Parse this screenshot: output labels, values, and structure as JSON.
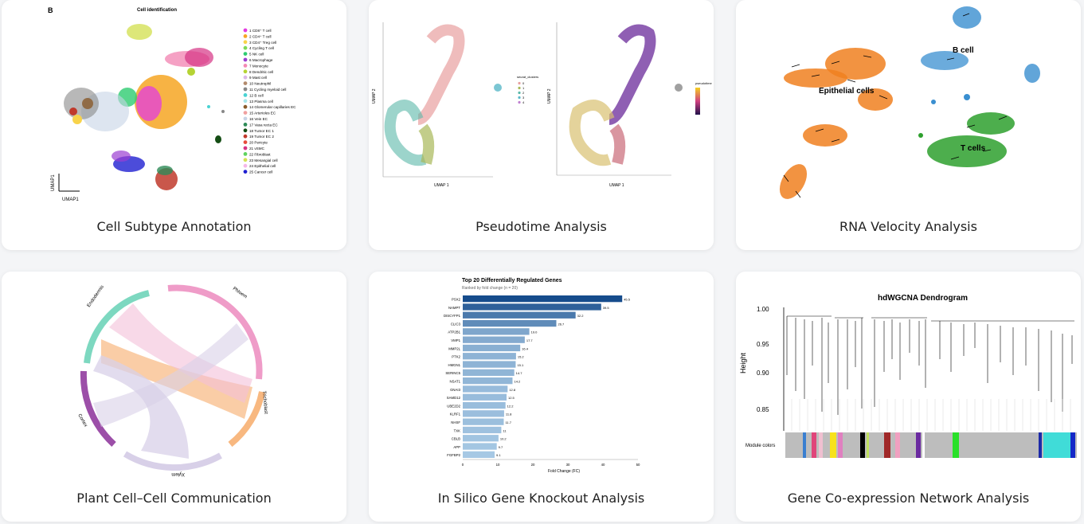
{
  "cards": [
    {
      "title": "Cell Subtype Annotation",
      "panel_letter": "B",
      "plot_title": "Cell identification",
      "axis_y": "UMAP1",
      "axis_x": "UMAP1",
      "legend": [
        {
          "label": "1 CD8⁺ T cell",
          "color": "#e33be0"
        },
        {
          "label": "2 CD4⁺ T cell",
          "color": "#f6a623"
        },
        {
          "label": "3 CD4⁺ Treg cell",
          "color": "#f8d34a"
        },
        {
          "label": "4 Cycling T cell",
          "color": "#7ed957"
        },
        {
          "label": "5 NK cell",
          "color": "#2ecc71"
        },
        {
          "label": "6 Macrophage",
          "color": "#9b3fd1"
        },
        {
          "label": "7 Monocyte",
          "color": "#f38ab5"
        },
        {
          "label": "8 Dendritic cell",
          "color": "#b5d334"
        },
        {
          "label": "9 Mast cell",
          "color": "#d9b8e8"
        },
        {
          "label": "10 Neutrophil",
          "color": "#b38b6d"
        },
        {
          "label": "11 Cycling myeloid cell",
          "color": "#888888"
        },
        {
          "label": "12 B cell",
          "color": "#49d3d3"
        },
        {
          "label": "13 Plasma cell",
          "color": "#a8e6ea"
        },
        {
          "label": "14 Glomerular capillaries EC",
          "color": "#8a5a2b"
        },
        {
          "label": "15 Arterioles EC",
          "color": "#f0a0a0"
        },
        {
          "label": "16 Vein EC",
          "color": "#c7d3e6"
        },
        {
          "label": "17 Vasa recta EC",
          "color": "#2e8b57"
        },
        {
          "label": "18 Tumor EC 1",
          "color": "#144d14"
        },
        {
          "label": "19 Tumor EC 2",
          "color": "#c0392b"
        },
        {
          "label": "20 Pericyte",
          "color": "#e74c3c"
        },
        {
          "label": "21 vSMC",
          "color": "#d63384"
        },
        {
          "label": "22 Fibroblast",
          "color": "#5fd35f"
        },
        {
          "label": "23 Mesangial cell",
          "color": "#d4e157"
        },
        {
          "label": "24 Epithelial cell",
          "color": "#f5b7e8"
        },
        {
          "label": "25 Cancer cell",
          "color": "#1f1fd1"
        }
      ]
    },
    {
      "title": "Pseudotime Analysis",
      "left_ylabel": "UMAP 2",
      "left_xlabel": "UMAP 1",
      "right_ylabel": "UMAP 2",
      "right_xlabel": "UMAP 1",
      "legend_left_title": "seurat_clusters",
      "legend_left_items": [
        "0",
        "1",
        "2",
        "3",
        "4"
      ],
      "legend_right_title": "pseudotime"
    },
    {
      "title": "RNA Velocity Analysis",
      "label_b": "B cell",
      "label_epi": "Epithelial cells",
      "label_t": "T cells"
    },
    {
      "title": "Plant Cell–Cell Communication",
      "segments": [
        "Endodermis",
        "Phloem",
        "Trichoblast",
        "Xylem",
        "Cortex"
      ]
    },
    {
      "title": "In Silico Gene Knockout Analysis",
      "chart_data": {
        "type": "bar",
        "title": "Top 20 Differentially Regulated Genes",
        "subtitle": "Ranked by fold change (n = 20)",
        "xlabel": "Fold Change (FC)",
        "ylabel": "",
        "xlim": [
          0,
          50
        ],
        "xticks": [
          "0",
          "10",
          "20",
          "30",
          "40",
          "50"
        ],
        "categories": [
          "PSX2",
          "NAMPT",
          "DISCYFP1",
          "CLIC3",
          "ATP2B1",
          "VMP1",
          "MMP2L",
          "PTK2",
          "HMGN1",
          "SERINC5",
          "NSAT1",
          "GNAI3",
          "SAMD12",
          "UBE2D2",
          "KLRF1",
          "NHSF",
          "TXK",
          "CBLB",
          "APP",
          "FGFBP2"
        ],
        "values": [
          45.5,
          39.5,
          32.2,
          26.7,
          19.0,
          17.7,
          16.4,
          15.2,
          15.1,
          14.7,
          14.2,
          12.8,
          12.5,
          12.2,
          11.8,
          11.7,
          11.0,
          10.2,
          9.7,
          9.1
        ],
        "value_labels": [
          "45.5",
          "39.5",
          "32.2",
          "26.7",
          "19.0",
          "17.7",
          "16.4",
          "15.2",
          "15.1",
          "14.7",
          "14.2",
          "12.8",
          "12.5",
          "12.2",
          "11.8",
          "11.7",
          "11",
          "10.2",
          "9.7",
          "9.1"
        ]
      }
    },
    {
      "title": "Gene Co-expression Network Analysis",
      "plot_title": "hdWGCNA Dendrogram",
      "ylabel": "Height",
      "yticks": [
        "1.00",
        "0.95",
        "0.90",
        "0.85"
      ],
      "module_label": "Module colors"
    }
  ]
}
